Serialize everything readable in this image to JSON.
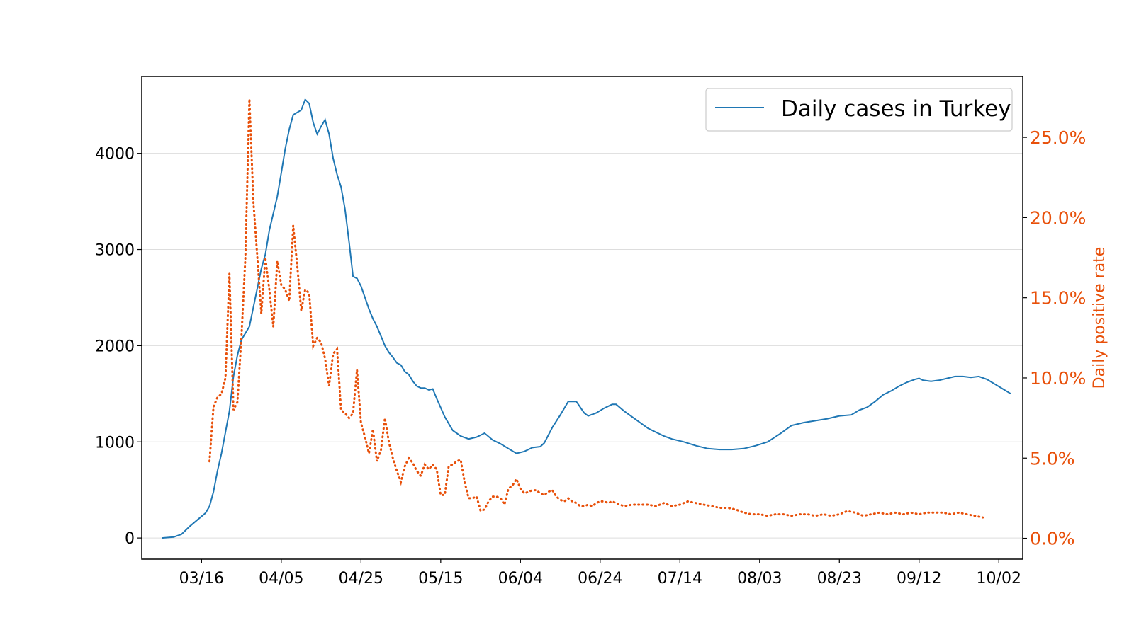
{
  "chart_data": {
    "type": "line",
    "title": "",
    "xlabel": "",
    "ylabel_left": "",
    "ylabel_right": "Daily positive rate",
    "x_tick_labels": [
      "03/16",
      "04/05",
      "04/25",
      "05/15",
      "06/04",
      "06/24",
      "07/14",
      "08/03",
      "08/23",
      "09/12",
      "10/02"
    ],
    "x_tick_days": [
      0,
      20,
      40,
      60,
      80,
      100,
      120,
      140,
      160,
      180,
      200
    ],
    "y_left_ticks": [
      "0",
      "1000",
      "2000",
      "3000",
      "4000"
    ],
    "y_left_tick_values": [
      0,
      1000,
      2000,
      3000,
      4000
    ],
    "y_right_ticks": [
      "0.0%",
      "5.0%",
      "10.0%",
      "15.0%",
      "20.0%",
      "25.0%"
    ],
    "y_right_tick_values": [
      0,
      5,
      10,
      15,
      20,
      25
    ],
    "x_range_days": [
      -15,
      206
    ],
    "ylim_left": [
      -220,
      4800
    ],
    "ylim_right": [
      -1.3,
      28.8
    ],
    "grid": "horizontal",
    "legend": {
      "placement": "top-right",
      "entries": [
        "Daily cases in Turkey"
      ]
    },
    "colors": {
      "cases": "#1f77b4",
      "positive_rate": "#e8500a"
    },
    "series": [
      {
        "name": "Daily cases in Turkey",
        "axis": "left",
        "style": "solid",
        "points": [
          [
            "03/06",
            0
          ],
          [
            "03/09",
            10
          ],
          [
            "03/11",
            40
          ],
          [
            "03/13",
            120
          ],
          [
            "03/15",
            190
          ],
          [
            "03/17",
            260
          ],
          [
            "03/18",
            330
          ],
          [
            "03/19",
            480
          ],
          [
            "03/20",
            700
          ],
          [
            "03/21",
            880
          ],
          [
            "03/22",
            1100
          ],
          [
            "03/23",
            1320
          ],
          [
            "03/24",
            1680
          ],
          [
            "03/25",
            1900
          ],
          [
            "03/26",
            2060
          ],
          [
            "03/28",
            2200
          ],
          [
            "03/29",
            2400
          ],
          [
            "03/31",
            2800
          ],
          [
            "04/01",
            2950
          ],
          [
            "04/02",
            3200
          ],
          [
            "04/04",
            3550
          ],
          [
            "04/05",
            3800
          ],
          [
            "04/06",
            4050
          ],
          [
            "04/07",
            4250
          ],
          [
            "04/08",
            4400
          ],
          [
            "04/10",
            4450
          ],
          [
            "04/11",
            4560
          ],
          [
            "04/12",
            4520
          ],
          [
            "04/13",
            4320
          ],
          [
            "04/14",
            4200
          ],
          [
            "04/15",
            4280
          ],
          [
            "04/16",
            4350
          ],
          [
            "04/17",
            4200
          ],
          [
            "04/18",
            3950
          ],
          [
            "04/19",
            3780
          ],
          [
            "04/20",
            3650
          ],
          [
            "04/21",
            3420
          ],
          [
            "04/22",
            3080
          ],
          [
            "04/23",
            2720
          ],
          [
            "04/24",
            2700
          ],
          [
            "04/25",
            2620
          ],
          [
            "04/26",
            2500
          ],
          [
            "04/27",
            2380
          ],
          [
            "04/28",
            2280
          ],
          [
            "04/29",
            2200
          ],
          [
            "04/30",
            2100
          ],
          [
            "05/01",
            2000
          ],
          [
            "05/02",
            1930
          ],
          [
            "05/03",
            1880
          ],
          [
            "05/04",
            1820
          ],
          [
            "05/05",
            1800
          ],
          [
            "05/06",
            1730
          ],
          [
            "05/07",
            1700
          ],
          [
            "05/08",
            1630
          ],
          [
            "05/09",
            1580
          ],
          [
            "05/10",
            1560
          ],
          [
            "05/11",
            1560
          ],
          [
            "05/12",
            1540
          ],
          [
            "05/13",
            1550
          ],
          [
            "05/14",
            1450
          ],
          [
            "05/16",
            1260
          ],
          [
            "05/18",
            1120
          ],
          [
            "05/20",
            1060
          ],
          [
            "05/22",
            1030
          ],
          [
            "05/24",
            1050
          ],
          [
            "05/26",
            1090
          ],
          [
            "05/28",
            1020
          ],
          [
            "05/30",
            980
          ],
          [
            "06/01",
            930
          ],
          [
            "06/03",
            880
          ],
          [
            "06/05",
            900
          ],
          [
            "06/07",
            940
          ],
          [
            "06/09",
            950
          ],
          [
            "06/10",
            990
          ],
          [
            "06/12",
            1150
          ],
          [
            "06/14",
            1280
          ],
          [
            "06/16",
            1420
          ],
          [
            "06/18",
            1420
          ],
          [
            "06/20",
            1300
          ],
          [
            "06/21",
            1270
          ],
          [
            "06/23",
            1300
          ],
          [
            "06/25",
            1350
          ],
          [
            "06/27",
            1390
          ],
          [
            "06/28",
            1390
          ],
          [
            "06/30",
            1320
          ],
          [
            "07/02",
            1260
          ],
          [
            "07/04",
            1200
          ],
          [
            "07/06",
            1140
          ],
          [
            "07/08",
            1100
          ],
          [
            "07/10",
            1060
          ],
          [
            "07/12",
            1030
          ],
          [
            "07/15",
            1000
          ],
          [
            "07/18",
            960
          ],
          [
            "07/21",
            930
          ],
          [
            "07/24",
            920
          ],
          [
            "07/27",
            920
          ],
          [
            "07/30",
            930
          ],
          [
            "08/02",
            960
          ],
          [
            "08/05",
            1000
          ],
          [
            "08/08",
            1080
          ],
          [
            "08/11",
            1170
          ],
          [
            "08/14",
            1200
          ],
          [
            "08/17",
            1220
          ],
          [
            "08/20",
            1240
          ],
          [
            "08/23",
            1270
          ],
          [
            "08/26",
            1280
          ],
          [
            "08/28",
            1330
          ],
          [
            "08/30",
            1360
          ],
          [
            "09/01",
            1420
          ],
          [
            "09/03",
            1490
          ],
          [
            "09/05",
            1530
          ],
          [
            "09/07",
            1580
          ],
          [
            "09/09",
            1620
          ],
          [
            "09/11",
            1650
          ],
          [
            "09/12",
            1660
          ],
          [
            "09/13",
            1640
          ],
          [
            "09/15",
            1630
          ],
          [
            "09/17",
            1640
          ],
          [
            "09/19",
            1660
          ],
          [
            "09/21",
            1680
          ],
          [
            "09/23",
            1680
          ],
          [
            "09/25",
            1670
          ],
          [
            "09/27",
            1680
          ],
          [
            "09/29",
            1650
          ],
          [
            "10/01",
            1600
          ],
          [
            "10/03",
            1550
          ],
          [
            "10/05",
            1500
          ]
        ]
      },
      {
        "name": "Daily positive rate",
        "axis": "right",
        "style": "dotted",
        "points": [
          [
            "03/18",
            4.8
          ],
          [
            "03/19",
            8.2
          ],
          [
            "03/20",
            8.8
          ],
          [
            "03/21",
            9.0
          ],
          [
            "03/22",
            10.0
          ],
          [
            "03/23",
            16.5
          ],
          [
            "03/24",
            8.0
          ],
          [
            "03/25",
            8.5
          ],
          [
            "03/26",
            12.5
          ],
          [
            "03/27",
            17.5
          ],
          [
            "03/28",
            27.4
          ],
          [
            "03/29",
            21.0
          ],
          [
            "03/30",
            17.5
          ],
          [
            "03/31",
            14.0
          ],
          [
            "04/01",
            17.5
          ],
          [
            "04/02",
            15.5
          ],
          [
            "04/03",
            13.2
          ],
          [
            "04/04",
            17.3
          ],
          [
            "04/05",
            15.8
          ],
          [
            "04/06",
            15.5
          ],
          [
            "04/07",
            14.8
          ],
          [
            "04/08",
            19.5
          ],
          [
            "04/09",
            17.0
          ],
          [
            "04/10",
            14.2
          ],
          [
            "04/11",
            15.5
          ],
          [
            "04/12",
            15.3
          ],
          [
            "04/13",
            12.0
          ],
          [
            "04/14",
            12.5
          ],
          [
            "04/15",
            12.2
          ],
          [
            "04/16",
            11.2
          ],
          [
            "04/17",
            9.5
          ],
          [
            "04/18",
            11.5
          ],
          [
            "04/19",
            11.8
          ],
          [
            "04/20",
            8.0
          ],
          [
            "04/21",
            7.8
          ],
          [
            "04/22",
            7.5
          ],
          [
            "04/23",
            7.8
          ],
          [
            "04/24",
            10.5
          ],
          [
            "04/25",
            7.2
          ],
          [
            "04/26",
            6.3
          ],
          [
            "04/27",
            5.3
          ],
          [
            "04/28",
            6.8
          ],
          [
            "04/29",
            4.8
          ],
          [
            "04/30",
            5.5
          ],
          [
            "05/01",
            7.5
          ],
          [
            "05/02",
            6.0
          ],
          [
            "05/03",
            5.0
          ],
          [
            "05/04",
            4.2
          ],
          [
            "05/05",
            3.5
          ],
          [
            "05/06",
            4.5
          ],
          [
            "05/07",
            5.0
          ],
          [
            "05/08",
            4.7
          ],
          [
            "05/09",
            4.2
          ],
          [
            "05/10",
            3.9
          ],
          [
            "05/11",
            4.6
          ],
          [
            "05/12",
            4.3
          ],
          [
            "05/13",
            4.6
          ],
          [
            "05/14",
            4.3
          ],
          [
            "05/15",
            2.7
          ],
          [
            "05/16",
            2.7
          ],
          [
            "05/17",
            4.5
          ],
          [
            "05/18",
            4.6
          ],
          [
            "05/19",
            4.8
          ],
          [
            "05/20",
            4.9
          ],
          [
            "05/21",
            3.5
          ],
          [
            "05/22",
            2.5
          ],
          [
            "05/23",
            2.5
          ],
          [
            "05/24",
            2.6
          ],
          [
            "05/25",
            1.7
          ],
          [
            "05/26",
            1.8
          ],
          [
            "05/27",
            2.3
          ],
          [
            "05/28",
            2.6
          ],
          [
            "05/29",
            2.6
          ],
          [
            "05/30",
            2.5
          ],
          [
            "05/31",
            2.1
          ],
          [
            "06/01",
            3.1
          ],
          [
            "06/02",
            3.3
          ],
          [
            "06/03",
            3.7
          ],
          [
            "06/04",
            3.1
          ],
          [
            "06/05",
            2.8
          ],
          [
            "06/06",
            2.9
          ],
          [
            "06/07",
            3.0
          ],
          [
            "06/08",
            3.0
          ],
          [
            "06/09",
            2.8
          ],
          [
            "06/10",
            2.7
          ],
          [
            "06/11",
            2.9
          ],
          [
            "06/12",
            3.0
          ],
          [
            "06/13",
            2.6
          ],
          [
            "06/14",
            2.4
          ],
          [
            "06/15",
            2.3
          ],
          [
            "06/16",
            2.5
          ],
          [
            "06/17",
            2.3
          ],
          [
            "06/18",
            2.2
          ],
          [
            "06/19",
            2.0
          ],
          [
            "06/20",
            2.0
          ],
          [
            "06/21",
            2.1
          ],
          [
            "06/22",
            2.0
          ],
          [
            "06/23",
            2.2
          ],
          [
            "06/24",
            2.3
          ],
          [
            "06/25",
            2.3
          ],
          [
            "06/26",
            2.2
          ],
          [
            "06/27",
            2.3
          ],
          [
            "06/28",
            2.2
          ],
          [
            "06/29",
            2.1
          ],
          [
            "06/30",
            2.0
          ],
          [
            "07/02",
            2.1
          ],
          [
            "07/04",
            2.1
          ],
          [
            "07/06",
            2.1
          ],
          [
            "07/08",
            2.0
          ],
          [
            "07/10",
            2.2
          ],
          [
            "07/12",
            2.0
          ],
          [
            "07/14",
            2.1
          ],
          [
            "07/16",
            2.3
          ],
          [
            "07/18",
            2.2
          ],
          [
            "07/20",
            2.1
          ],
          [
            "07/22",
            2.0
          ],
          [
            "07/24",
            1.9
          ],
          [
            "07/26",
            1.9
          ],
          [
            "07/28",
            1.8
          ],
          [
            "07/30",
            1.6
          ],
          [
            "08/01",
            1.5
          ],
          [
            "08/03",
            1.5
          ],
          [
            "08/05",
            1.4
          ],
          [
            "08/07",
            1.5
          ],
          [
            "08/09",
            1.5
          ],
          [
            "08/11",
            1.4
          ],
          [
            "08/13",
            1.5
          ],
          [
            "08/15",
            1.5
          ],
          [
            "08/17",
            1.4
          ],
          [
            "08/19",
            1.5
          ],
          [
            "08/21",
            1.4
          ],
          [
            "08/23",
            1.5
          ],
          [
            "08/25",
            1.7
          ],
          [
            "08/27",
            1.6
          ],
          [
            "08/29",
            1.4
          ],
          [
            "08/31",
            1.5
          ],
          [
            "09/02",
            1.6
          ],
          [
            "09/04",
            1.5
          ],
          [
            "09/06",
            1.6
          ],
          [
            "09/08",
            1.5
          ],
          [
            "09/10",
            1.6
          ],
          [
            "09/12",
            1.5
          ],
          [
            "09/14",
            1.6
          ],
          [
            "09/16",
            1.6
          ],
          [
            "09/18",
            1.6
          ],
          [
            "09/20",
            1.5
          ],
          [
            "09/22",
            1.6
          ],
          [
            "09/24",
            1.5
          ],
          [
            "09/26",
            1.4
          ],
          [
            "09/28",
            1.3
          ]
        ]
      }
    ]
  }
}
